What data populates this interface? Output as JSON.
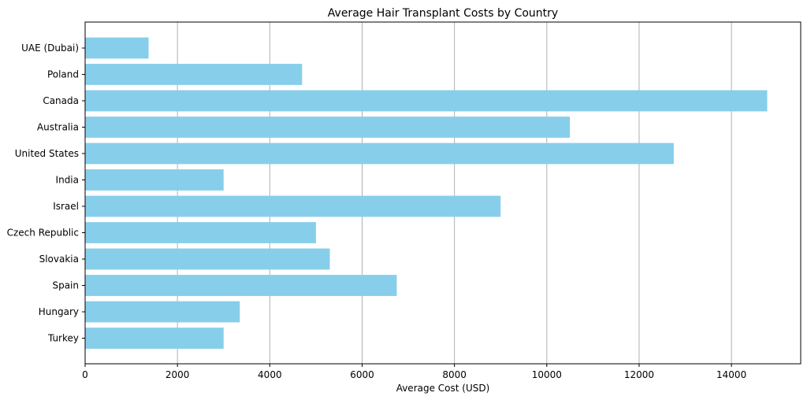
{
  "chart_data": {
    "type": "bar",
    "orientation": "horizontal",
    "title": "Average Hair Transplant Costs by Country",
    "xlabel": "Average Cost (USD)",
    "ylabel": "",
    "categories": [
      "UAE (Dubai)",
      "Poland",
      "Canada",
      "Australia",
      "United States",
      "India",
      "Israel",
      "Czech Republic",
      "Slovakia",
      "Spain",
      "Hungary",
      "Turkey"
    ],
    "values": [
      1375,
      4700,
      14775,
      10500,
      12750,
      3000,
      9000,
      5000,
      5300,
      6750,
      3350,
      3000
    ],
    "xlim": [
      0,
      15500
    ],
    "xticks": [
      0,
      2000,
      4000,
      6000,
      8000,
      10000,
      12000,
      14000
    ],
    "grid": "vertical",
    "bar_color": "#87ceeb"
  }
}
